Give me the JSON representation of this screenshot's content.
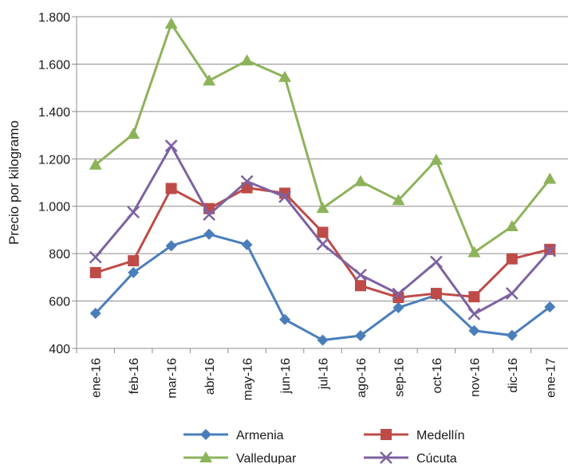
{
  "chart_data": {
    "type": "line",
    "title": "",
    "xlabel": "",
    "ylabel": "Precio por kilogramo",
    "ylim": [
      400,
      1800
    ],
    "yticks": [
      400,
      600,
      800,
      1000,
      1200,
      1400,
      1600,
      1800
    ],
    "ytick_labels": [
      "400",
      "600",
      "800",
      "1.000",
      "1.200",
      "1.400",
      "1.600",
      "1.800"
    ],
    "grid": true,
    "legend_position": "bottom",
    "categories": [
      "ene-16",
      "feb-16",
      "mar-16",
      "abr-16",
      "may-16",
      "jun-16",
      "jul-16",
      "ago-16",
      "sep-16",
      "oct-16",
      "nov-16",
      "dic-16",
      "ene-17"
    ],
    "series": [
      {
        "name": "Armenia",
        "color": "#4a7ebb",
        "marker": "diamond",
        "values": [
          548,
          720,
          833,
          882,
          838,
          522,
          435,
          454,
          572,
          625,
          475,
          455,
          575
        ]
      },
      {
        "name": "Medellín",
        "color": "#be4b48",
        "marker": "square",
        "values": [
          720,
          770,
          1075,
          990,
          1078,
          1055,
          890,
          665,
          615,
          632,
          618,
          778,
          818
        ]
      },
      {
        "name": "Valledupar",
        "color": "#8db35a",
        "marker": "triangle",
        "values": [
          1175,
          1305,
          1770,
          1530,
          1615,
          1545,
          992,
          1105,
          1025,
          1195,
          805,
          915,
          1115
        ]
      },
      {
        "name": "Cúcuta",
        "color": "#7e62a1",
        "marker": "x",
        "values": [
          785,
          975,
          1255,
          965,
          1105,
          1040,
          840,
          710,
          630,
          765,
          545,
          632,
          812
        ]
      }
    ]
  }
}
